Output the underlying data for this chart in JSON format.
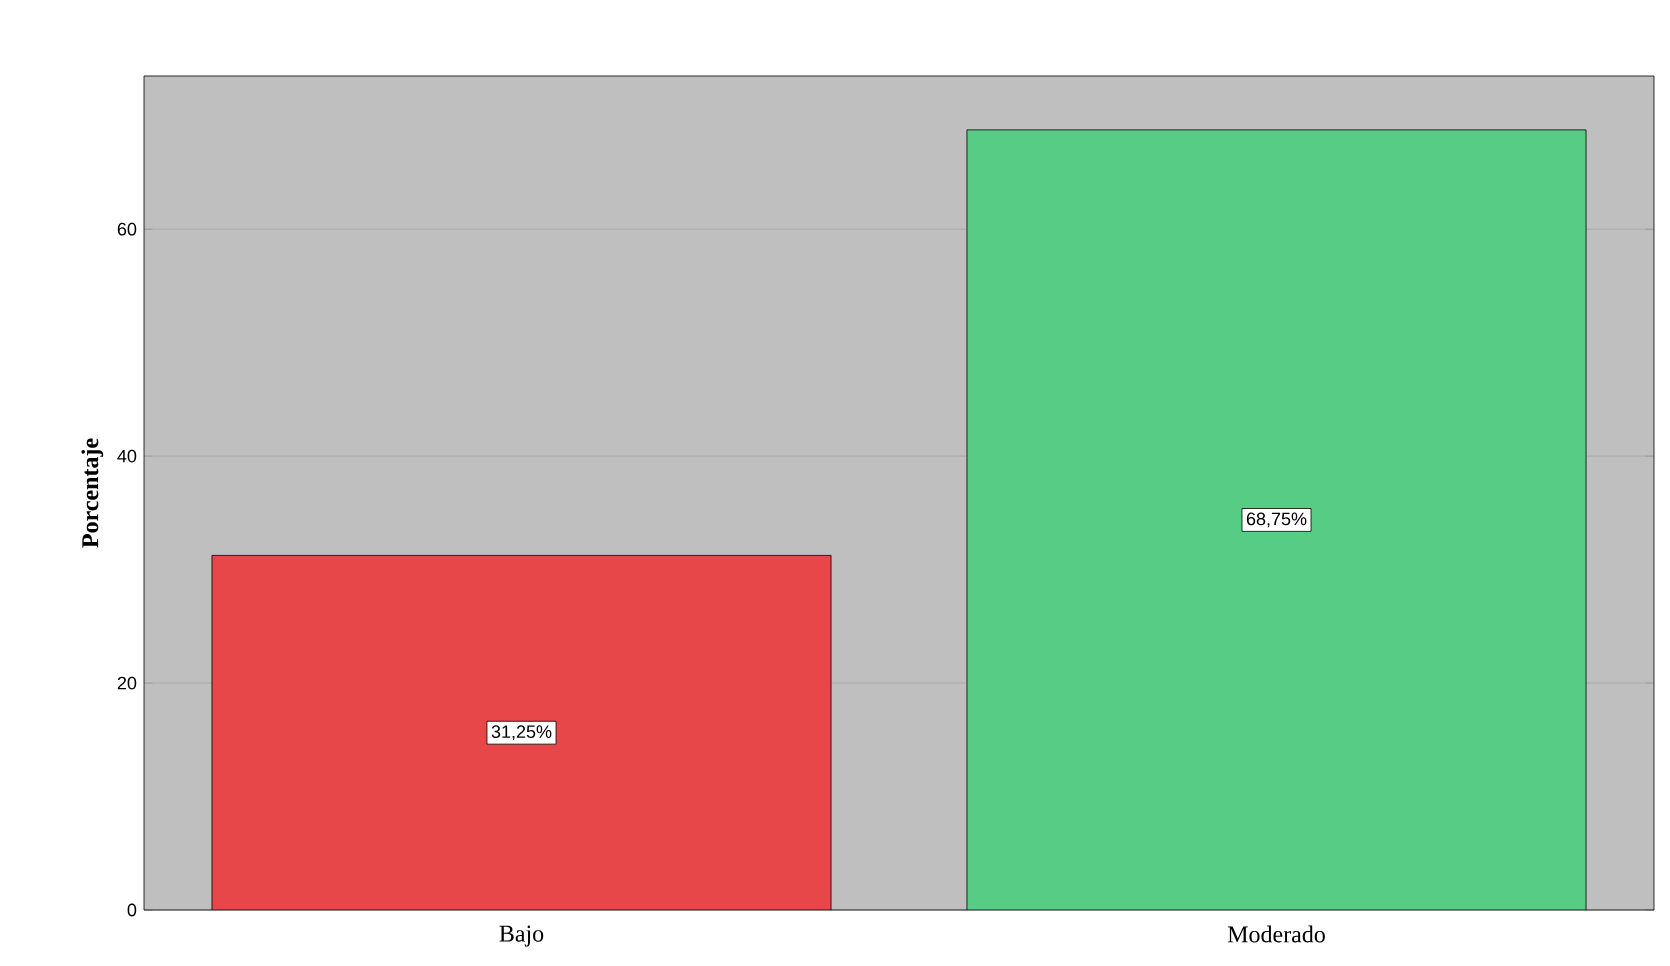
{
  "chart_data": {
    "type": "bar",
    "categories": [
      "Bajo",
      "Moderado"
    ],
    "values": [
      31.25,
      68.75
    ],
    "colors": [
      "#e8474a",
      "#56cc85"
    ],
    "value_labels": [
      "31,25%",
      "68,75%"
    ],
    "ylabel": "Porcentaje",
    "ylim": [
      0,
      73.5
    ],
    "yticks": [
      0,
      20,
      40,
      60
    ],
    "grid": "y"
  }
}
